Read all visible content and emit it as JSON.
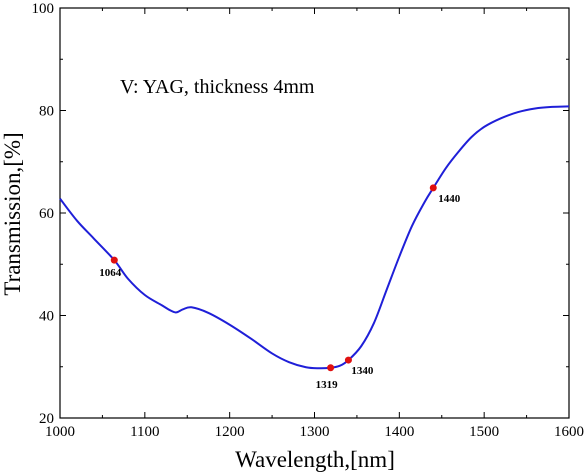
{
  "chart_data": {
    "type": "line",
    "title": "",
    "annotation": "V: YAG, thickness 4mm",
    "xlabel": "Wavelength,[nm]",
    "ylabel": "Transmission,[%]",
    "xlim": [
      1000,
      1600
    ],
    "ylim": [
      20,
      100
    ],
    "xticks": [
      1000,
      1100,
      1200,
      1300,
      1400,
      1500,
      1600
    ],
    "yticks": [
      20,
      40,
      60,
      80,
      100
    ],
    "grid": false,
    "line_color": "#1f1fd8",
    "marker_color": "#e01010",
    "series": [
      {
        "x": [
          1000,
          1020,
          1040,
          1064,
          1080,
          1100,
          1120,
          1130,
          1137,
          1145,
          1155,
          1175,
          1200,
          1225,
          1250,
          1270,
          1290,
          1305,
          1319,
          1330,
          1340,
          1355,
          1370,
          1385,
          1400,
          1415,
          1430,
          1440,
          1455,
          1470,
          1485,
          1500,
          1520,
          1540,
          1560,
          1580,
          1600
        ],
        "y": [
          62.8,
          58.5,
          55.0,
          50.8,
          47.2,
          44.0,
          42.0,
          41.0,
          40.6,
          41.2,
          41.6,
          40.5,
          38.2,
          35.5,
          32.6,
          30.9,
          29.9,
          29.7,
          29.8,
          30.2,
          31.3,
          34.0,
          38.5,
          45.0,
          51.5,
          57.5,
          62.2,
          64.9,
          68.8,
          72.0,
          74.8,
          76.8,
          78.5,
          79.7,
          80.4,
          80.7,
          80.8
        ]
      }
    ],
    "marked_points": [
      {
        "x": 1064,
        "y": 50.8,
        "label": "1064"
      },
      {
        "x": 1319,
        "y": 29.8,
        "label": "1319"
      },
      {
        "x": 1340,
        "y": 31.3,
        "label": "1340"
      },
      {
        "x": 1440,
        "y": 64.9,
        "label": "1440"
      }
    ]
  }
}
